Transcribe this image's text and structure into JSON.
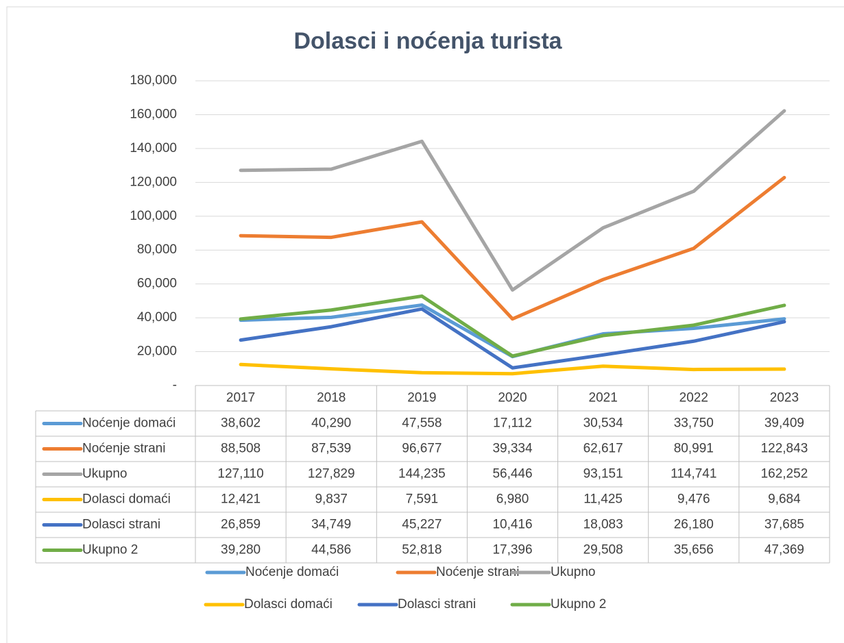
{
  "chart_data": {
    "type": "line",
    "title": "Dolasci i noćenja turista",
    "categories": [
      "2017",
      "2018",
      "2019",
      "2020",
      "2021",
      "2022",
      "2023"
    ],
    "ylim": [
      0,
      180000
    ],
    "yticks": [
      {
        "value": 0,
        "label": "-"
      },
      {
        "value": 20000,
        "label": "20,000"
      },
      {
        "value": 40000,
        "label": "40,000"
      },
      {
        "value": 60000,
        "label": "60,000"
      },
      {
        "value": 80000,
        "label": "80,000"
      },
      {
        "value": 100000,
        "label": "100,000"
      },
      {
        "value": 120000,
        "label": "120,000"
      },
      {
        "value": 140000,
        "label": "140,000"
      },
      {
        "value": 160000,
        "label": "160,000"
      },
      {
        "value": 180000,
        "label": "180,000"
      }
    ],
    "grid": true,
    "legend": "bottom",
    "series": [
      {
        "name": "Noćenje domaći",
        "color": "#5b9bd5",
        "values": [
          38602,
          40290,
          47558,
          17112,
          30534,
          33750,
          39409
        ],
        "value_labels": [
          "38,602",
          "40,290",
          "47,558",
          "17,112",
          "30,534",
          "33,750",
          "39,409"
        ]
      },
      {
        "name": "Noćenje strani",
        "color": "#ed7d31",
        "values": [
          88508,
          87539,
          96677,
          39334,
          62617,
          80991,
          122843
        ],
        "value_labels": [
          "88,508",
          "87,539",
          "96,677",
          "39,334",
          "62,617",
          "80,991",
          "122,843"
        ]
      },
      {
        "name": "Ukupno",
        "color": "#a5a5a5",
        "values": [
          127110,
          127829,
          144235,
          56446,
          93151,
          114741,
          162252
        ],
        "value_labels": [
          "127,110",
          "127,829",
          "144,235",
          "56,446",
          "93,151",
          "114,741",
          "162,252"
        ]
      },
      {
        "name": "Dolasci domaći",
        "color": "#ffc000",
        "values": [
          12421,
          9837,
          7591,
          6980,
          11425,
          9476,
          9684
        ],
        "value_labels": [
          "12,421",
          "9,837",
          "7,591",
          "6,980",
          "11,425",
          "9,476",
          "9,684"
        ]
      },
      {
        "name": "Dolasci strani",
        "color": "#4472c4",
        "values": [
          26859,
          34749,
          45227,
          10416,
          18083,
          26180,
          37685
        ],
        "value_labels": [
          "26,859",
          "34,749",
          "45,227",
          "10,416",
          "18,083",
          "26,180",
          "37,685"
        ]
      },
      {
        "name": "Ukupno 2",
        "color": "#70ad47",
        "values": [
          39280,
          44586,
          52818,
          17396,
          29508,
          35656,
          47369
        ],
        "value_labels": [
          "39,280",
          "44,586",
          "52,818",
          "17,396",
          "29,508",
          "35,656",
          "47,369"
        ]
      }
    ]
  }
}
